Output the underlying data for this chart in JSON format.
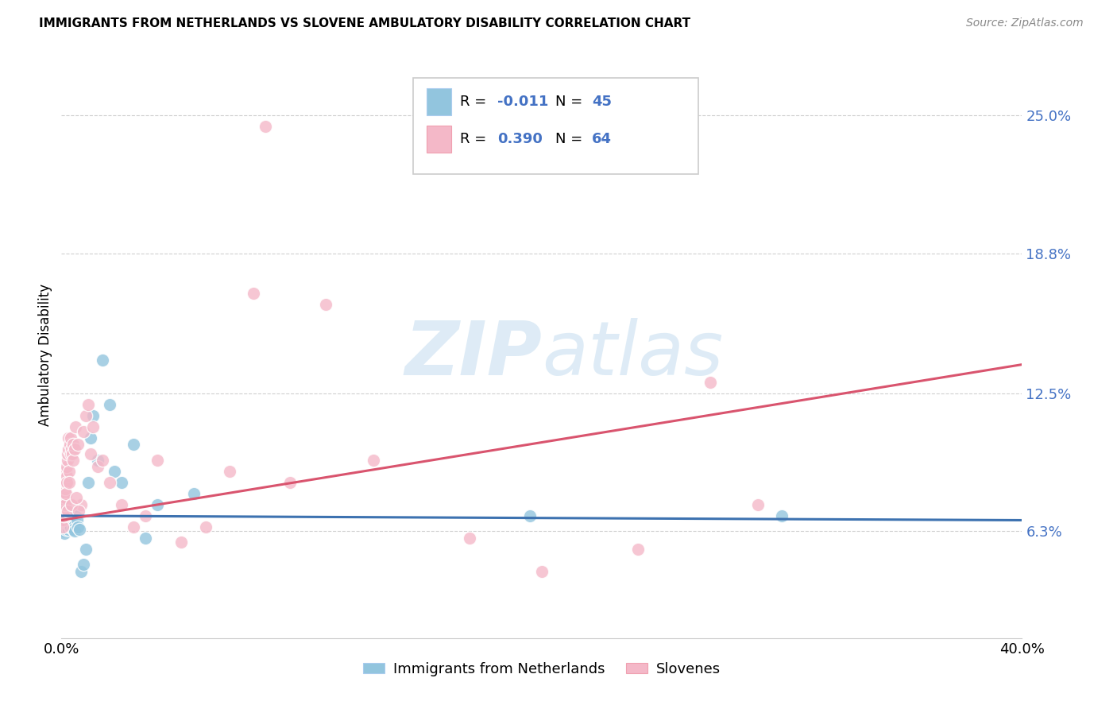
{
  "title": "IMMIGRANTS FROM NETHERLANDS VS SLOVENE AMBULATORY DISABILITY CORRELATION CHART",
  "source": "Source: ZipAtlas.com",
  "ylabel": "Ambulatory Disability",
  "yticks": [
    6.3,
    12.5,
    18.8,
    25.0
  ],
  "ytick_labels": [
    "6.3%",
    "12.5%",
    "18.8%",
    "25.0%"
  ],
  "xmin": 0.0,
  "xmax": 40.0,
  "ymin": 1.5,
  "ymax": 27.0,
  "legend_label1": "Immigrants from Netherlands",
  "legend_label2": "Slovenes",
  "color_blue": "#92c5de",
  "color_pink": "#f4b8c8",
  "line_color_blue": "#3d72b0",
  "line_color_pink": "#d9546e",
  "ytick_color": "#4472c4",
  "watermark_color": "#c8dff0",
  "background_color": "#ffffff",
  "grid_color": "#d0d0d0",
  "blue_x": [
    0.05,
    0.08,
    0.1,
    0.12,
    0.13,
    0.15,
    0.16,
    0.18,
    0.2,
    0.22,
    0.24,
    0.25,
    0.27,
    0.28,
    0.3,
    0.32,
    0.35,
    0.37,
    0.4,
    0.42,
    0.45,
    0.48,
    0.5,
    0.55,
    0.6,
    0.65,
    0.7,
    0.75,
    0.8,
    0.9,
    1.0,
    1.1,
    1.2,
    1.3,
    1.5,
    1.7,
    2.0,
    2.2,
    2.5,
    3.0,
    3.5,
    4.0,
    5.5,
    19.5,
    30.0
  ],
  "blue_y": [
    6.5,
    6.3,
    6.8,
    7.0,
    6.2,
    7.5,
    6.5,
    6.8,
    6.4,
    6.9,
    6.5,
    7.2,
    6.7,
    6.4,
    6.6,
    6.8,
    6.5,
    7.0,
    6.5,
    6.9,
    6.7,
    6.5,
    6.4,
    6.3,
    7.0,
    6.8,
    6.5,
    6.4,
    4.5,
    4.8,
    5.5,
    8.5,
    10.5,
    11.5,
    9.5,
    14.0,
    12.0,
    9.0,
    8.5,
    10.2,
    6.0,
    7.5,
    8.0,
    7.0,
    7.0
  ],
  "pink_x": [
    0.05,
    0.07,
    0.08,
    0.1,
    0.11,
    0.12,
    0.13,
    0.15,
    0.16,
    0.17,
    0.18,
    0.2,
    0.21,
    0.22,
    0.23,
    0.25,
    0.27,
    0.28,
    0.3,
    0.32,
    0.35,
    0.37,
    0.4,
    0.42,
    0.45,
    0.48,
    0.5,
    0.55,
    0.6,
    0.7,
    0.8,
    0.9,
    1.0,
    1.1,
    1.2,
    1.3,
    1.5,
    1.7,
    2.0,
    2.5,
    3.0,
    3.5,
    4.0,
    5.0,
    6.0,
    7.0,
    8.0,
    9.5,
    11.0,
    13.0,
    17.0,
    20.0,
    24.0,
    27.0,
    29.0,
    0.06,
    0.09,
    0.14,
    0.19,
    0.24,
    0.33,
    0.43,
    0.63,
    0.73
  ],
  "pink_y": [
    7.0,
    6.8,
    7.2,
    8.5,
    7.0,
    7.5,
    7.2,
    8.0,
    7.8,
    8.2,
    8.5,
    9.0,
    8.8,
    8.5,
    9.2,
    9.5,
    9.8,
    10.0,
    10.5,
    9.0,
    10.2,
    9.8,
    10.5,
    10.0,
    9.8,
    10.2,
    9.5,
    10.0,
    11.0,
    10.2,
    7.5,
    10.8,
    11.5,
    12.0,
    9.8,
    11.0,
    9.2,
    9.5,
    8.5,
    7.5,
    6.5,
    7.0,
    9.5,
    5.8,
    6.5,
    9.0,
    17.0,
    8.5,
    16.5,
    9.5,
    6.0,
    4.5,
    5.5,
    13.0,
    7.5,
    6.5,
    7.0,
    7.5,
    8.0,
    7.2,
    8.5,
    7.5,
    7.8,
    7.2
  ],
  "pink_outlier_x": [
    8.5
  ],
  "pink_outlier_y": [
    24.5
  ],
  "blue_line_x": [
    0.0,
    40.0
  ],
  "blue_line_y": [
    7.0,
    6.8
  ],
  "pink_line_x": [
    0.0,
    40.0
  ],
  "pink_line_y": [
    6.8,
    13.8
  ]
}
